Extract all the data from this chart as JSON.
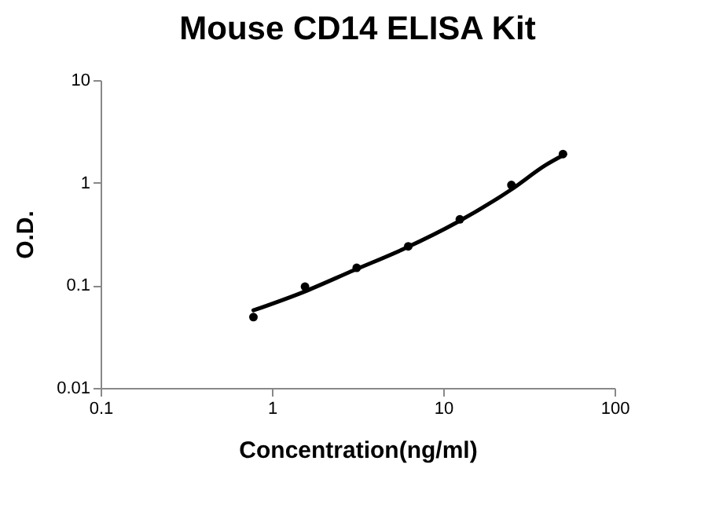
{
  "chart_data": {
    "type": "scatter",
    "title": "Mouse CD14 ELISA Kit",
    "xlabel": "Concentration(ng/ml)",
    "ylabel": "O.D.",
    "log": "xy",
    "xlim": [
      0.1,
      100
    ],
    "xticks": [
      0.1,
      1,
      10,
      100
    ],
    "ylim": [
      0.01,
      10
    ],
    "yticks": [
      0.01,
      0.1,
      1,
      10
    ],
    "grid": false,
    "marker": "circle",
    "series": [
      {
        "type": "line",
        "color": "#000000",
        "line_style": "solid",
        "marker": "none",
        "x": [
          0.78,
          1.5,
          3,
          6,
          12,
          25,
          40,
          50
        ],
        "values": [
          0.057,
          0.085,
          0.14,
          0.23,
          0.41,
          0.86,
          1.5,
          1.85
        ]
      },
      {
        "color": "#000000",
        "x": [
          0.78,
          1.56,
          3.125,
          6.25,
          12.5,
          25,
          50
        ],
        "values": [
          0.049,
          0.097,
          0.148,
          0.24,
          0.44,
          0.95,
          1.9
        ]
      }
    ]
  }
}
